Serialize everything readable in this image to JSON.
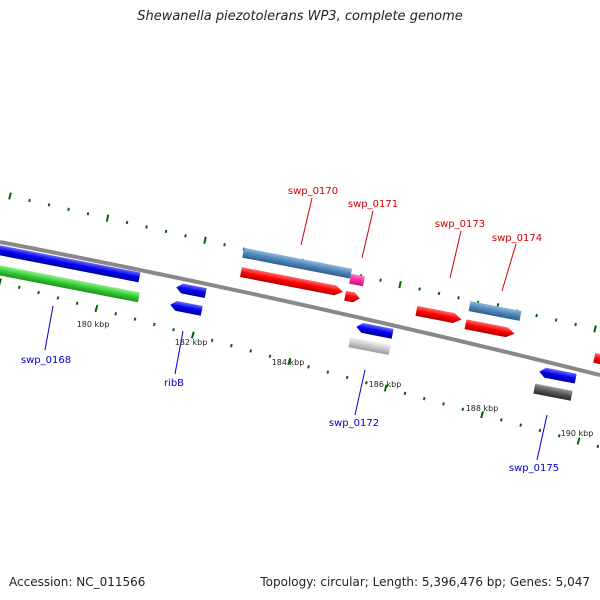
{
  "title": "Shewanella piezotolerans WP3, complete genome",
  "footer": {
    "accession": "Accession: NC_011566",
    "topology": "Topology: circular; Length: 5,396,476 bp; Genes: 5,047"
  },
  "scale_labels": [
    "180 kbp",
    "182 kbp",
    "184 kbp",
    "186 kbp",
    "188 kbp",
    "190 kbp"
  ],
  "gene_labels": [
    {
      "name": "swp_0168",
      "color": "#0000cc"
    },
    {
      "name": "ribB",
      "color": "#0000cc"
    },
    {
      "name": "swp_0170",
      "color": "#cc0000"
    },
    {
      "name": "swp_0171",
      "color": "#cc0000"
    },
    {
      "name": "swp_0172",
      "color": "#0000cc"
    },
    {
      "name": "swp_0173",
      "color": "#cc0000"
    },
    {
      "name": "swp_0174",
      "color": "#cc0000"
    },
    {
      "name": "swp_0175",
      "color": "#0000cc"
    }
  ],
  "colors": {
    "forward_cds": "#ff0000",
    "reverse_cds": "#0000ee",
    "backbone": "#888888",
    "tick": "#006600",
    "steelblue_feature": "#4f86b8",
    "pink_feature": "#ff2aa0",
    "green_feature": "#33cc33",
    "grey_feature": "#c8c8c8",
    "dark_feature": "#555555"
  }
}
